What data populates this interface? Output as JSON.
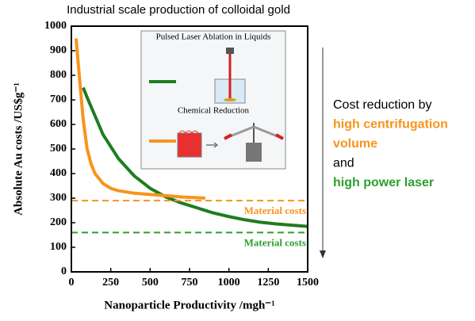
{
  "chart_data": {
    "type": "line",
    "title": "Industrial scale production of  colloidal gold",
    "x_label": "Nanoparticle Productivity /mgh⁻¹",
    "y_label": "Absolute Au costs /US$g⁻¹",
    "xlim": [
      0,
      1500
    ],
    "ylim": [
      0,
      1000
    ],
    "xticks": [
      0,
      250,
      500,
      750,
      1000,
      1250,
      1500
    ],
    "yticks": [
      0,
      100,
      200,
      300,
      400,
      500,
      600,
      700,
      800,
      900,
      1000
    ],
    "series": [
      {
        "name": "Pulsed Laser Ablation in Liquids",
        "color": "#1e7d1e",
        "x": [
          75,
          100,
          200,
          300,
          400,
          500,
          600,
          700,
          800,
          900,
          1000,
          1100,
          1200,
          1300,
          1400,
          1500
        ],
        "values": [
          750,
          710,
          560,
          460,
          390,
          340,
          305,
          280,
          260,
          240,
          225,
          212,
          202,
          195,
          190,
          185
        ]
      },
      {
        "name": "Chemical Reduction",
        "color": "#f7941d",
        "x": [
          30,
          50,
          75,
          100,
          125,
          150,
          200,
          250,
          300,
          400,
          500,
          600,
          700,
          850
        ],
        "values": [
          950,
          800,
          620,
          500,
          440,
          400,
          360,
          340,
          330,
          320,
          315,
          310,
          305,
          300
        ]
      }
    ],
    "reference_lines": [
      {
        "label": "Material costs",
        "value": 290,
        "color": "#f7941d"
      },
      {
        "label": "Material costs",
        "value": 160,
        "color": "#2ca02c"
      }
    ],
    "annotations": [
      {
        "text": "Cost reduction by",
        "color": "#000000",
        "bold": false
      },
      {
        "text": "high centrifugation",
        "color": "#f7941d",
        "bold": true
      },
      {
        "text": "volume",
        "color": "#f7941d",
        "bold": true
      },
      {
        "text": "and",
        "color": "#000000",
        "bold": false
      },
      {
        "text": "high power laser",
        "color": "#2ca02c",
        "bold": true
      }
    ]
  }
}
